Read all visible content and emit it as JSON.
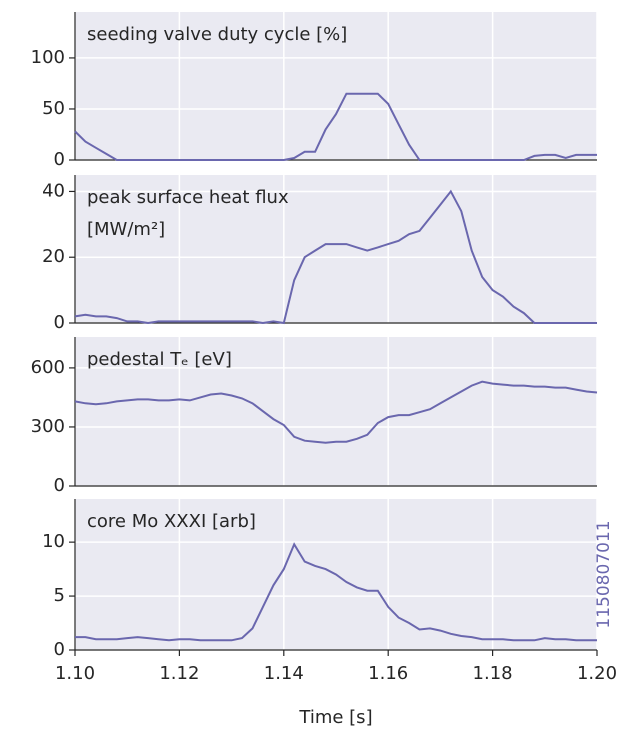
{
  "chart_data": [
    {
      "type": "line",
      "title": "seeding valve duty cycle [%]",
      "color": "#6a67ae",
      "grid": true,
      "ylim": [
        0,
        145
      ],
      "yticks": [
        0,
        50,
        100
      ],
      "x": [
        1.1,
        1.102,
        1.104,
        1.106,
        1.108,
        1.11,
        1.112,
        1.114,
        1.116,
        1.118,
        1.12,
        1.122,
        1.124,
        1.126,
        1.128,
        1.13,
        1.132,
        1.134,
        1.136,
        1.138,
        1.14,
        1.142,
        1.144,
        1.146,
        1.148,
        1.15,
        1.152,
        1.154,
        1.156,
        1.158,
        1.16,
        1.162,
        1.164,
        1.166,
        1.168,
        1.17,
        1.172,
        1.174,
        1.176,
        1.178,
        1.18,
        1.182,
        1.184,
        1.186,
        1.188,
        1.19,
        1.192,
        1.194,
        1.196,
        1.198,
        1.2
      ],
      "values": [
        28,
        18,
        12,
        6,
        0,
        0,
        0,
        0,
        0,
        0,
        0,
        0,
        0,
        0,
        0,
        0,
        0,
        0,
        0,
        0,
        0,
        2,
        8,
        8,
        30,
        45,
        65,
        65,
        65,
        65,
        55,
        35,
        15,
        0,
        0,
        0,
        0,
        0,
        0,
        0,
        0,
        0,
        0,
        0,
        4,
        5,
        5,
        2,
        5,
        5,
        5
      ]
    },
    {
      "type": "line",
      "title": [
        "peak surface heat flux",
        "[MW/m²]"
      ],
      "color": "#6a67ae",
      "grid": true,
      "ylim": [
        0,
        45
      ],
      "yticks": [
        0,
        20,
        40
      ],
      "x": [
        1.1,
        1.102,
        1.104,
        1.106,
        1.108,
        1.11,
        1.112,
        1.114,
        1.116,
        1.118,
        1.12,
        1.122,
        1.124,
        1.126,
        1.128,
        1.13,
        1.132,
        1.134,
        1.136,
        1.138,
        1.14,
        1.142,
        1.144,
        1.146,
        1.148,
        1.15,
        1.152,
        1.154,
        1.156,
        1.158,
        1.16,
        1.162,
        1.164,
        1.166,
        1.168,
        1.17,
        1.172,
        1.174,
        1.176,
        1.178,
        1.18,
        1.182,
        1.184,
        1.186,
        1.188,
        1.19,
        1.192,
        1.194,
        1.196,
        1.198,
        1.2
      ],
      "values": [
        2,
        2.5,
        2,
        2,
        1.5,
        0.5,
        0.5,
        0,
        0.5,
        0.5,
        0.5,
        0.5,
        0.5,
        0.5,
        0.5,
        0.5,
        0.5,
        0.5,
        0,
        0.5,
        0,
        13,
        20,
        22,
        24,
        24,
        24,
        23,
        22,
        23,
        24,
        25,
        27,
        28,
        32,
        36,
        40,
        34,
        22,
        14,
        10,
        8,
        5,
        3,
        0,
        0,
        0,
        0,
        0,
        0,
        0
      ]
    },
    {
      "type": "line",
      "title": "pedestal Tₑ [eV]",
      "color": "#6a67ae",
      "grid": true,
      "ylim": [
        0,
        757
      ],
      "yticks": [
        0,
        300,
        600
      ],
      "x": [
        1.1,
        1.102,
        1.104,
        1.106,
        1.108,
        1.11,
        1.112,
        1.114,
        1.116,
        1.118,
        1.12,
        1.122,
        1.124,
        1.126,
        1.128,
        1.13,
        1.132,
        1.134,
        1.136,
        1.138,
        1.14,
        1.142,
        1.144,
        1.146,
        1.148,
        1.15,
        1.152,
        1.154,
        1.156,
        1.158,
        1.16,
        1.162,
        1.164,
        1.166,
        1.168,
        1.17,
        1.172,
        1.174,
        1.176,
        1.178,
        1.18,
        1.182,
        1.184,
        1.186,
        1.188,
        1.19,
        1.192,
        1.194,
        1.196,
        1.198,
        1.2
      ],
      "values": [
        430,
        420,
        415,
        420,
        430,
        435,
        440,
        440,
        435,
        435,
        440,
        435,
        450,
        465,
        470,
        460,
        445,
        420,
        380,
        340,
        310,
        250,
        230,
        225,
        220,
        225,
        225,
        240,
        260,
        320,
        350,
        360,
        360,
        375,
        390,
        420,
        450,
        480,
        510,
        530,
        520,
        515,
        510,
        510,
        505,
        505,
        500,
        500,
        490,
        480,
        475
      ]
    },
    {
      "type": "line",
      "title": "core Mo XXXI [arb]",
      "color": "#6a67ae",
      "grid": true,
      "ylim": [
        0,
        14
      ],
      "yticks": [
        0,
        5,
        10
      ],
      "xlim": [
        1.1,
        1.2
      ],
      "xlabel": "Time [s]",
      "xticks": [
        {
          "value": 1.1,
          "label": "1.10"
        },
        1.12,
        1.14,
        1.16,
        1.18,
        {
          "value": 1.2,
          "label": "1.20"
        }
      ],
      "annotation": "1150807011",
      "x": [
        1.1,
        1.102,
        1.104,
        1.106,
        1.108,
        1.11,
        1.112,
        1.114,
        1.116,
        1.118,
        1.12,
        1.122,
        1.124,
        1.126,
        1.128,
        1.13,
        1.132,
        1.134,
        1.136,
        1.138,
        1.14,
        1.142,
        1.144,
        1.146,
        1.148,
        1.15,
        1.152,
        1.154,
        1.156,
        1.158,
        1.16,
        1.162,
        1.164,
        1.166,
        1.168,
        1.17,
        1.172,
        1.174,
        1.176,
        1.178,
        1.18,
        1.182,
        1.184,
        1.186,
        1.188,
        1.19,
        1.192,
        1.194,
        1.196,
        1.198,
        1.2
      ],
      "values": [
        1.2,
        1.2,
        1.0,
        1.0,
        1.0,
        1.1,
        1.2,
        1.1,
        1.0,
        0.9,
        1.0,
        1.0,
        0.9,
        0.9,
        0.9,
        0.9,
        1.1,
        2,
        4,
        6,
        7.5,
        9.8,
        8.2,
        7.8,
        7.5,
        7.0,
        6.3,
        5.8,
        5.5,
        5.5,
        4.0,
        3.0,
        2.5,
        1.9,
        2.0,
        1.8,
        1.5,
        1.3,
        1.2,
        1.0,
        1.0,
        1.0,
        0.9,
        0.9,
        0.9,
        1.1,
        1.0,
        1.0,
        0.9,
        0.9,
        0.9
      ]
    }
  ]
}
